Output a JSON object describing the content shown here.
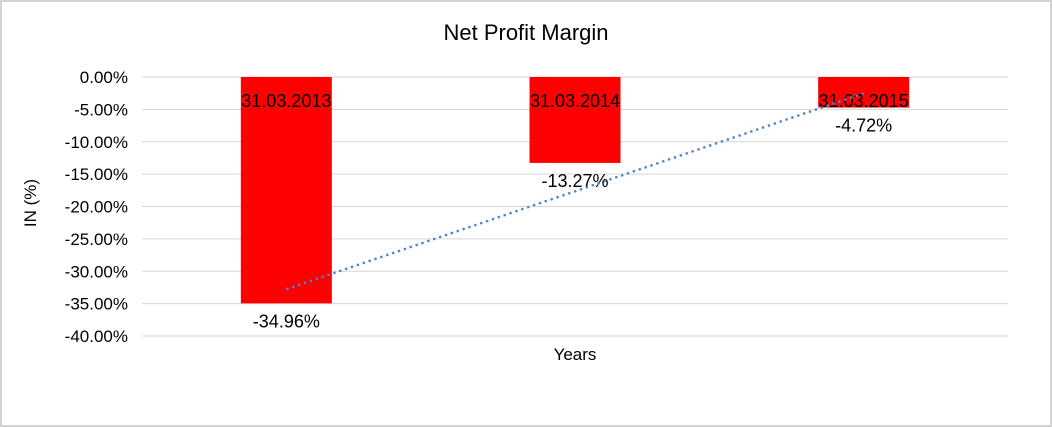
{
  "chart_data": {
    "type": "bar",
    "title": "Net Profit Margin",
    "xlabel": "Years",
    "ylabel": "IN (%)",
    "categories": [
      "31.03.2013",
      "31.03.2014",
      "31.03.2015"
    ],
    "values": [
      -34.96,
      -13.27,
      -4.72
    ],
    "value_labels": [
      "-34.96%",
      "-13.27%",
      "-4.72%"
    ],
    "ylim": [
      -40,
      0
    ],
    "ytick_step": 5,
    "ytick_labels": [
      "0.00%",
      "-5.00%",
      "-10.00%",
      "-15.00%",
      "-20.00%",
      "-25.00%",
      "-30.00%",
      "-35.00%",
      "-40.00%"
    ],
    "grid": true,
    "legend": "none",
    "bar_color": "#ff0000",
    "gridline_color": "#d6d6d6",
    "trendline": {
      "type": "linear",
      "style": "dotted",
      "color": "#4f86c6"
    }
  }
}
